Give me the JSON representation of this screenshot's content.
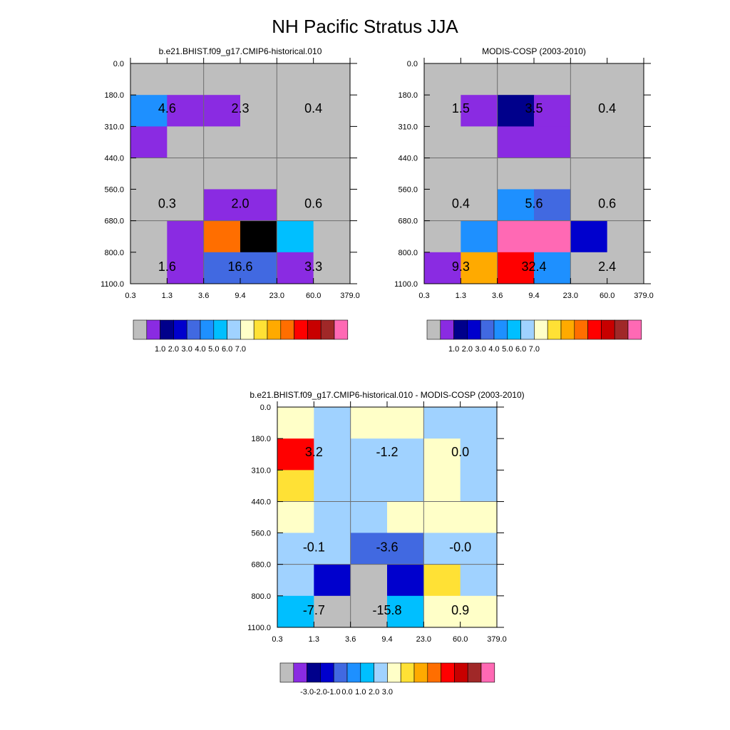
{
  "page": {
    "title": "NH Pacific Stratus JJA"
  },
  "chart_data": [
    {
      "type": "heatmap",
      "title": "b.e21.BHIST.f09_g17.CMIP6-historical.010",
      "x_ticks": [
        "0.3",
        "1.3",
        "3.6",
        "9.4",
        "23.0",
        "60.0",
        "379.0"
      ],
      "y_ticks": [
        "0.0",
        "180.0",
        "310.0",
        "440.0",
        "560.0",
        "680.0",
        "800.0",
        "1100.0"
      ],
      "bin_color_index": [
        [
          0,
          0,
          0,
          0,
          0,
          0
        ],
        [
          5,
          1,
          1,
          0,
          0,
          0
        ],
        [
          1,
          0,
          0,
          0,
          0,
          0
        ],
        [
          0,
          0,
          0,
          0,
          0,
          0
        ],
        [
          0,
          0,
          1,
          1,
          0,
          0
        ],
        [
          0,
          1,
          11,
          16,
          6,
          0
        ],
        [
          0,
          1,
          4,
          4,
          1,
          0
        ]
      ],
      "block_values": [
        [
          "4.6",
          "2.3",
          "0.4"
        ],
        [
          "0.3",
          "2.0",
          "0.6"
        ],
        [
          "1.6",
          "16.6",
          "3.3"
        ]
      ],
      "colorbar": {
        "colors": [
          "#bebebe",
          "#8a2be2",
          "#00008b",
          "#0000cd",
          "#4169e1",
          "#1e90ff",
          "#00bfff",
          "#a0d2ff",
          "#ffffc8",
          "#ffe135",
          "#ffaa00",
          "#ff6e00",
          "#ff0000",
          "#c80000",
          "#a02828",
          "#ff69b4"
        ],
        "labels": [
          "1.0",
          "2.0",
          "3.0",
          "4.0",
          "5.0",
          "6.0",
          "7.0"
        ]
      }
    },
    {
      "type": "heatmap",
      "title": "MODIS-COSP (2003-2010)",
      "x_ticks": [
        "0.3",
        "1.3",
        "3.6",
        "9.4",
        "23.0",
        "60.0",
        "379.0"
      ],
      "y_ticks": [
        "0.0",
        "180.0",
        "310.0",
        "440.0",
        "560.0",
        "680.0",
        "800.0",
        "1100.0"
      ],
      "bin_color_index": [
        [
          0,
          0,
          0,
          0,
          0,
          0
        ],
        [
          0,
          1,
          2,
          1,
          0,
          0
        ],
        [
          0,
          0,
          1,
          1,
          0,
          0
        ],
        [
          0,
          0,
          0,
          0,
          0,
          0
        ],
        [
          0,
          0,
          5,
          4,
          0,
          0
        ],
        [
          0,
          5,
          15,
          15,
          3,
          0
        ],
        [
          1,
          10,
          12,
          5,
          0,
          0
        ]
      ],
      "block_values": [
        [
          "1.5",
          "3.5",
          "0.4"
        ],
        [
          "0.4",
          "5.6",
          "0.6"
        ],
        [
          "9.3",
          "32.4",
          "2.4"
        ]
      ],
      "colorbar": {
        "colors": [
          "#bebebe",
          "#8a2be2",
          "#00008b",
          "#0000cd",
          "#4169e1",
          "#1e90ff",
          "#00bfff",
          "#a0d2ff",
          "#ffffc8",
          "#ffe135",
          "#ffaa00",
          "#ff6e00",
          "#ff0000",
          "#c80000",
          "#a02828",
          "#ff69b4"
        ],
        "labels": [
          "1.0",
          "2.0",
          "3.0",
          "4.0",
          "5.0",
          "6.0",
          "7.0"
        ]
      }
    },
    {
      "type": "heatmap",
      "title": "b.e21.BHIST.f09_g17.CMIP6-historical.010 - MODIS-COSP (2003-2010)",
      "x_ticks": [
        "0.3",
        "1.3",
        "3.6",
        "9.4",
        "23.0",
        "60.0",
        "379.0"
      ],
      "y_ticks": [
        "0.0",
        "180.0",
        "310.0",
        "440.0",
        "560.0",
        "680.0",
        "800.0",
        "1100.0"
      ],
      "bin_color_index": [
        [
          8,
          7,
          8,
          8,
          7,
          7
        ],
        [
          12,
          7,
          7,
          7,
          8,
          7
        ],
        [
          9,
          7,
          7,
          7,
          8,
          7
        ],
        [
          8,
          7,
          7,
          8,
          8,
          8
        ],
        [
          7,
          7,
          4,
          4,
          7,
          7
        ],
        [
          7,
          3,
          0,
          3,
          9,
          7
        ],
        [
          6,
          0,
          0,
          6,
          8,
          8
        ]
      ],
      "block_values": [
        [
          "3.2",
          "-1.2",
          "0.0"
        ],
        [
          "-0.1",
          "-3.6",
          "-0.0"
        ],
        [
          "-7.7",
          "-15.8",
          "0.9"
        ]
      ],
      "colorbar": {
        "colors": [
          "#bebebe",
          "#8a2be2",
          "#00008b",
          "#0000cd",
          "#4169e1",
          "#1e90ff",
          "#00bfff",
          "#a0d2ff",
          "#ffffc8",
          "#ffe135",
          "#ffaa00",
          "#ff6e00",
          "#ff0000",
          "#c80000",
          "#a02828",
          "#ff69b4"
        ],
        "labels": [
          "-3.0",
          "-2.0",
          "-1.0",
          "0.0",
          "1.0",
          "2.0",
          "3.0"
        ]
      }
    }
  ]
}
